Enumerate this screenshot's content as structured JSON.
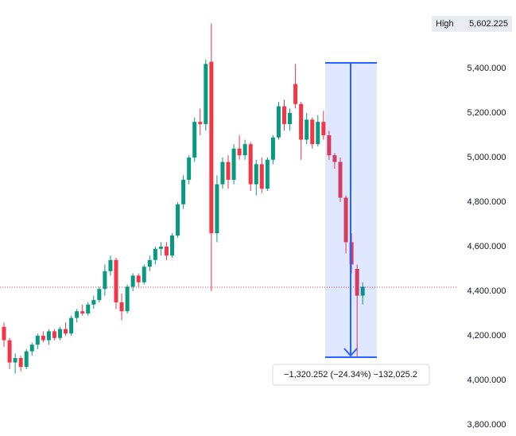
{
  "chart_data": {
    "type": "candlestick",
    "ylim": [
      3750,
      5707
    ],
    "yticks": [
      {
        "value": 5400,
        "label": "5,400.000"
      },
      {
        "value": 5200,
        "label": "5,200.000"
      },
      {
        "value": 5000,
        "label": "5,000.000"
      },
      {
        "value": 4800,
        "label": "4,800.000"
      },
      {
        "value": 4600,
        "label": "4,600.000"
      },
      {
        "value": 4400,
        "label": "4,400.000"
      },
      {
        "value": 4200,
        "label": "4,200.000"
      },
      {
        "value": 4000,
        "label": "4,000.000"
      },
      {
        "value": 3800,
        "label": "3,800.000"
      }
    ],
    "up_color": "#089981",
    "down_color": "#f23645",
    "high_label": "High",
    "high_value": {
      "value": 5602.225,
      "label": "5,602.225"
    },
    "measure_label": "−1,320.252 (−24.34%) −132,025.2",
    "open": [
      4240,
      4180,
      4080,
      4100,
      4060,
      4130,
      4160,
      4200,
      4180,
      4220,
      4190,
      4230,
      4210,
      4280,
      4310,
      4300,
      4340,
      4360,
      4410,
      4490,
      4540,
      4350,
      4310,
      4420,
      4470,
      4440,
      4510,
      4540,
      4590,
      4600,
      4560,
      4650,
      4790,
      4900,
      5000,
      5160,
      5150,
      5430,
      4660,
      4880,
      4980,
      4900,
      5040,
      5010,
      5060,
      4880,
      4970,
      4860,
      4990,
      5090,
      5230,
      5150,
      5330,
      5240,
      5080,
      5170,
      5060,
      5160,
      5100,
      5010,
      4980,
      4820,
      4620,
      4500,
      4380
    ],
    "high": [
      4260,
      4190,
      4120,
      4110,
      4140,
      4170,
      4210,
      4220,
      4230,
      4230,
      4240,
      4260,
      4290,
      4320,
      4340,
      4350,
      4380,
      4420,
      4520,
      4560,
      4550,
      4390,
      4430,
      4480,
      4480,
      4520,
      4560,
      4600,
      4620,
      4620,
      4660,
      4800,
      4920,
      5010,
      5180,
      5220,
      5440,
      5602.225,
      4920,
      5000,
      5010,
      5060,
      5100,
      5080,
      5070,
      4990,
      5000,
      5000,
      5100,
      5250,
      5260,
      5220,
      5420,
      5250,
      5200,
      5180,
      5190,
      5210,
      5120,
      5020,
      5000,
      4830,
      4660,
      4520,
      4440
    ],
    "low": [
      4150,
      4050,
      4030,
      4040,
      4050,
      4110,
      4140,
      4170,
      4160,
      4180,
      4180,
      4200,
      4200,
      4260,
      4290,
      4290,
      4320,
      4350,
      4380,
      4470,
      4320,
      4270,
      4300,
      4400,
      4420,
      4430,
      4490,
      4520,
      4560,
      4540,
      4550,
      4640,
      4770,
      4880,
      4980,
      5100,
      5120,
      4400,
      4620,
      4860,
      4860,
      4880,
      4990,
      4990,
      4850,
      4830,
      4840,
      4850,
      4970,
      5080,
      5120,
      5120,
      5220,
      4990,
      5060,
      5040,
      5050,
      5080,
      4990,
      4950,
      4800,
      4570,
      4480,
      4104,
      4340
    ],
    "close": [
      4180,
      4080,
      4100,
      4060,
      4130,
      4160,
      4200,
      4180,
      4220,
      4190,
      4230,
      4210,
      4280,
      4310,
      4300,
      4340,
      4360,
      4410,
      4490,
      4540,
      4350,
      4310,
      4420,
      4470,
      4440,
      4510,
      4540,
      4590,
      4600,
      4560,
      4650,
      4790,
      4900,
      5000,
      5160,
      5150,
      5420,
      4660,
      4880,
      4980,
      4900,
      5040,
      5010,
      5060,
      4880,
      4970,
      4860,
      4990,
      5090,
      5230,
      5150,
      5200,
      5240,
      5080,
      5170,
      5060,
      5160,
      5100,
      5010,
      4980,
      4820,
      4620,
      4520,
      4380,
      4420
    ]
  }
}
